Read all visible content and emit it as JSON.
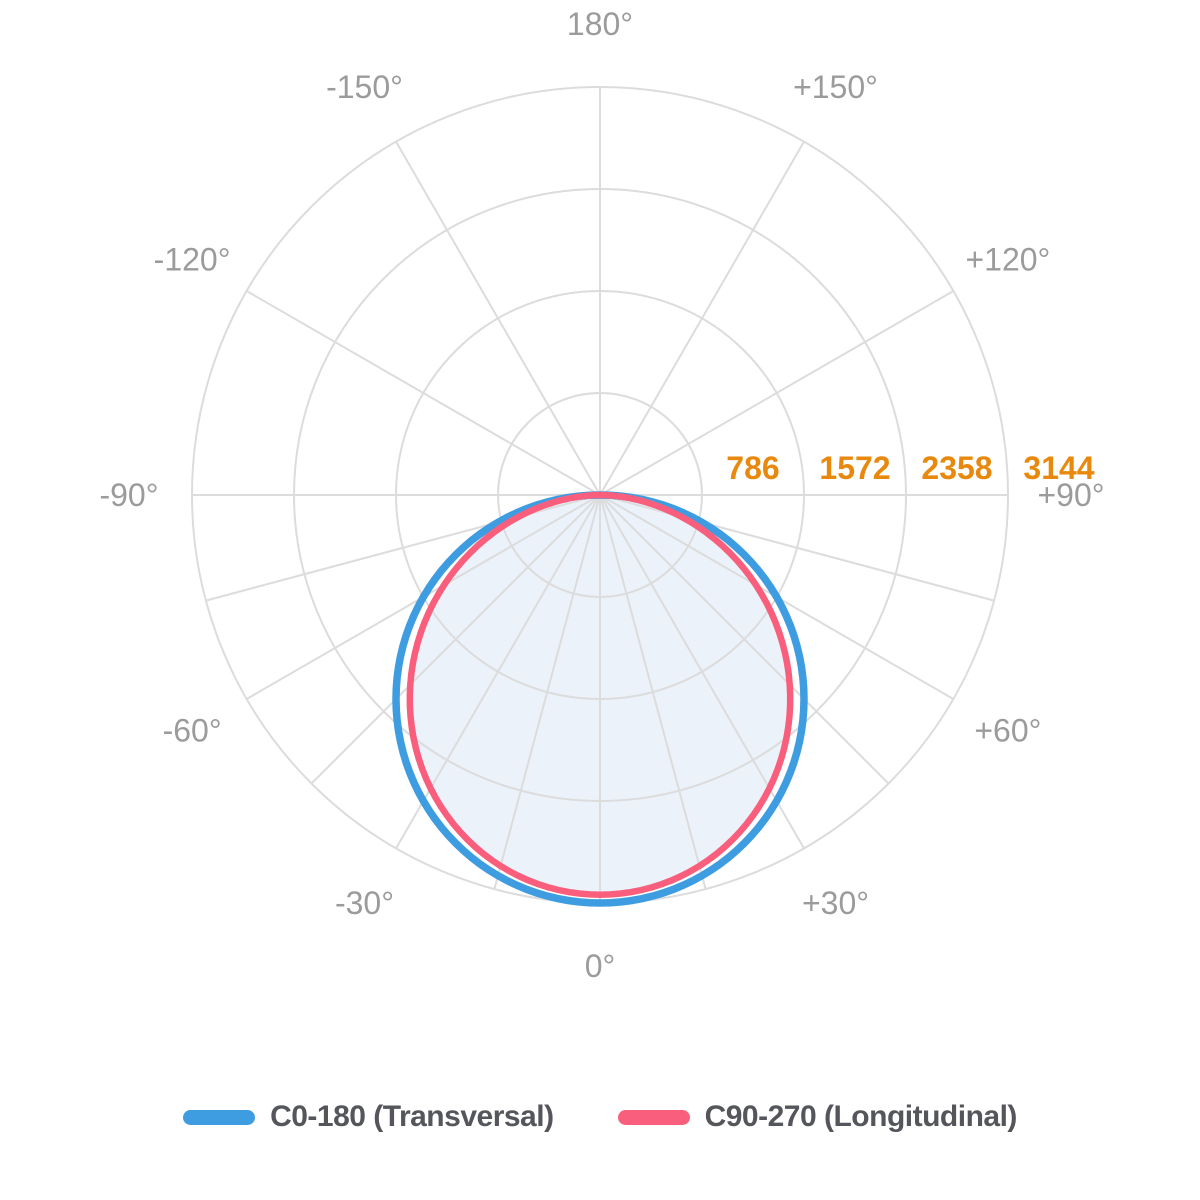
{
  "chart_data": {
    "type": "polar",
    "description": "Luminous intensity distribution polar diagram, 0° at bottom",
    "radial_axis": {
      "tick_values": [
        786,
        1572,
        2358,
        3144
      ],
      "max": 3144,
      "tick_color": "#E8890D"
    },
    "angle_axis": {
      "label_color": "#9B9B9B",
      "labels": [
        {
          "angle": 0,
          "label": "0°"
        },
        {
          "angle": -30,
          "label": "-30°"
        },
        {
          "angle": 30,
          "label": "+30°"
        },
        {
          "angle": -60,
          "label": "-60°"
        },
        {
          "angle": 60,
          "label": "+60°"
        },
        {
          "angle": -90,
          "label": "-90°"
        },
        {
          "angle": 90,
          "label": "+90°"
        },
        {
          "angle": -120,
          "label": "-120°"
        },
        {
          "angle": 120,
          "label": "+120°"
        },
        {
          "angle": -150,
          "label": "-150°"
        },
        {
          "angle": 150,
          "label": "+150°"
        },
        {
          "angle": 180,
          "label": "180°"
        }
      ]
    },
    "grid_color": "#DCDCDC",
    "fill_color": "#EBF2FA",
    "series": [
      {
        "name": "C0-180 (Transversal)",
        "color": "#3E9CE1",
        "peak": 3144,
        "cosine_exponent": 1.0,
        "angles_deg": [
          -90,
          -75,
          -60,
          -45,
          -30,
          -15,
          0,
          15,
          30,
          45,
          60,
          75,
          90
        ],
        "values": [
          0,
          814,
          1572,
          2223,
          2723,
          3037,
          3144,
          3037,
          2723,
          2223,
          1572,
          814,
          0
        ]
      },
      {
        "name": "C90-270 (Longitudinal)",
        "color": "#F95F7D",
        "peak": 3080,
        "cosine_exponent": 1.15,
        "angles_deg": [
          -90,
          -75,
          -60,
          -45,
          -30,
          -15,
          0,
          15,
          30,
          45,
          60,
          75,
          90
        ],
        "values": [
          0,
          651,
          1388,
          2068,
          2611,
          2960,
          3080,
          2960,
          2611,
          2068,
          1388,
          651,
          0
        ]
      }
    ],
    "legend_position": "bottom"
  },
  "legend": {
    "items": [
      {
        "label": "C0-180 (Transversal)",
        "color": "#3E9CE1"
      },
      {
        "label": "C90-270 (Longitudinal)",
        "color": "#F95F7D"
      }
    ]
  }
}
